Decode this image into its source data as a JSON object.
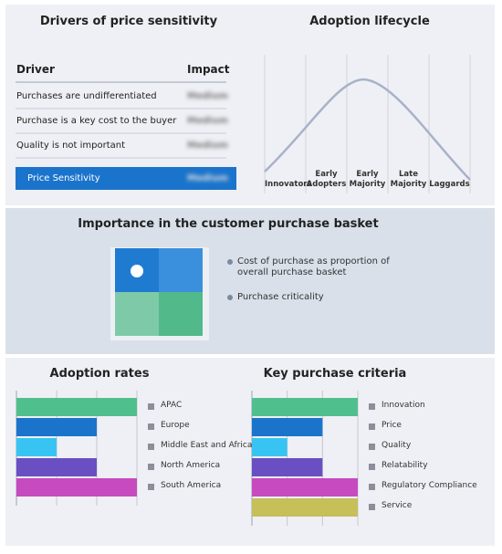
{
  "drivers": {
    "title": "Drivers of price sensitivity",
    "header": [
      "Driver",
      "Impact"
    ],
    "rows": [
      [
        "Purchases are undifferentiated",
        "Medium"
      ],
      [
        "Purchase is a key cost to the buyer",
        "Medium"
      ],
      [
        "Quality is not important",
        "Medium"
      ]
    ],
    "highlight": [
      "Price Sensitivity",
      "Medium"
    ]
  },
  "lifecycle": {
    "title": "Adoption lifecycle",
    "stages": [
      "Innovators",
      "Early Adopters",
      "Early Majority",
      "Late Majority",
      "Laggards"
    ]
  },
  "basket": {
    "title": "Importance in the customer purchase basket",
    "legend": [
      "Cost of purchase as proportion of overall purchase basket",
      "Purchase criticality"
    ]
  },
  "chart_data": [
    {
      "type": "bar",
      "title": "Adoption rates",
      "categories": [
        "APAC",
        "Europe",
        "Middle East and Africa",
        "North America",
        "South America"
      ],
      "values": [
        3,
        2,
        1,
        2,
        3
      ],
      "colors": [
        "#4fc08d",
        "#1b74cc",
        "#38c4f2",
        "#6a4fc2",
        "#c54bbf"
      ],
      "xlim": [
        0,
        3
      ],
      "xticks": [
        1,
        2,
        3
      ]
    },
    {
      "type": "bar",
      "title": "Key purchase criteria",
      "categories": [
        "Innovation",
        "Price",
        "Quality",
        "Relatability",
        "Regulatory Compliance",
        "Service"
      ],
      "values": [
        3,
        2,
        1,
        2,
        3,
        3
      ],
      "colors": [
        "#4fc08d",
        "#1b74cc",
        "#38c4f2",
        "#6a4fc2",
        "#c54bbf",
        "#c6bf5a"
      ],
      "xlim": [
        0,
        3
      ],
      "xticks": [
        1,
        2,
        3
      ]
    }
  ]
}
